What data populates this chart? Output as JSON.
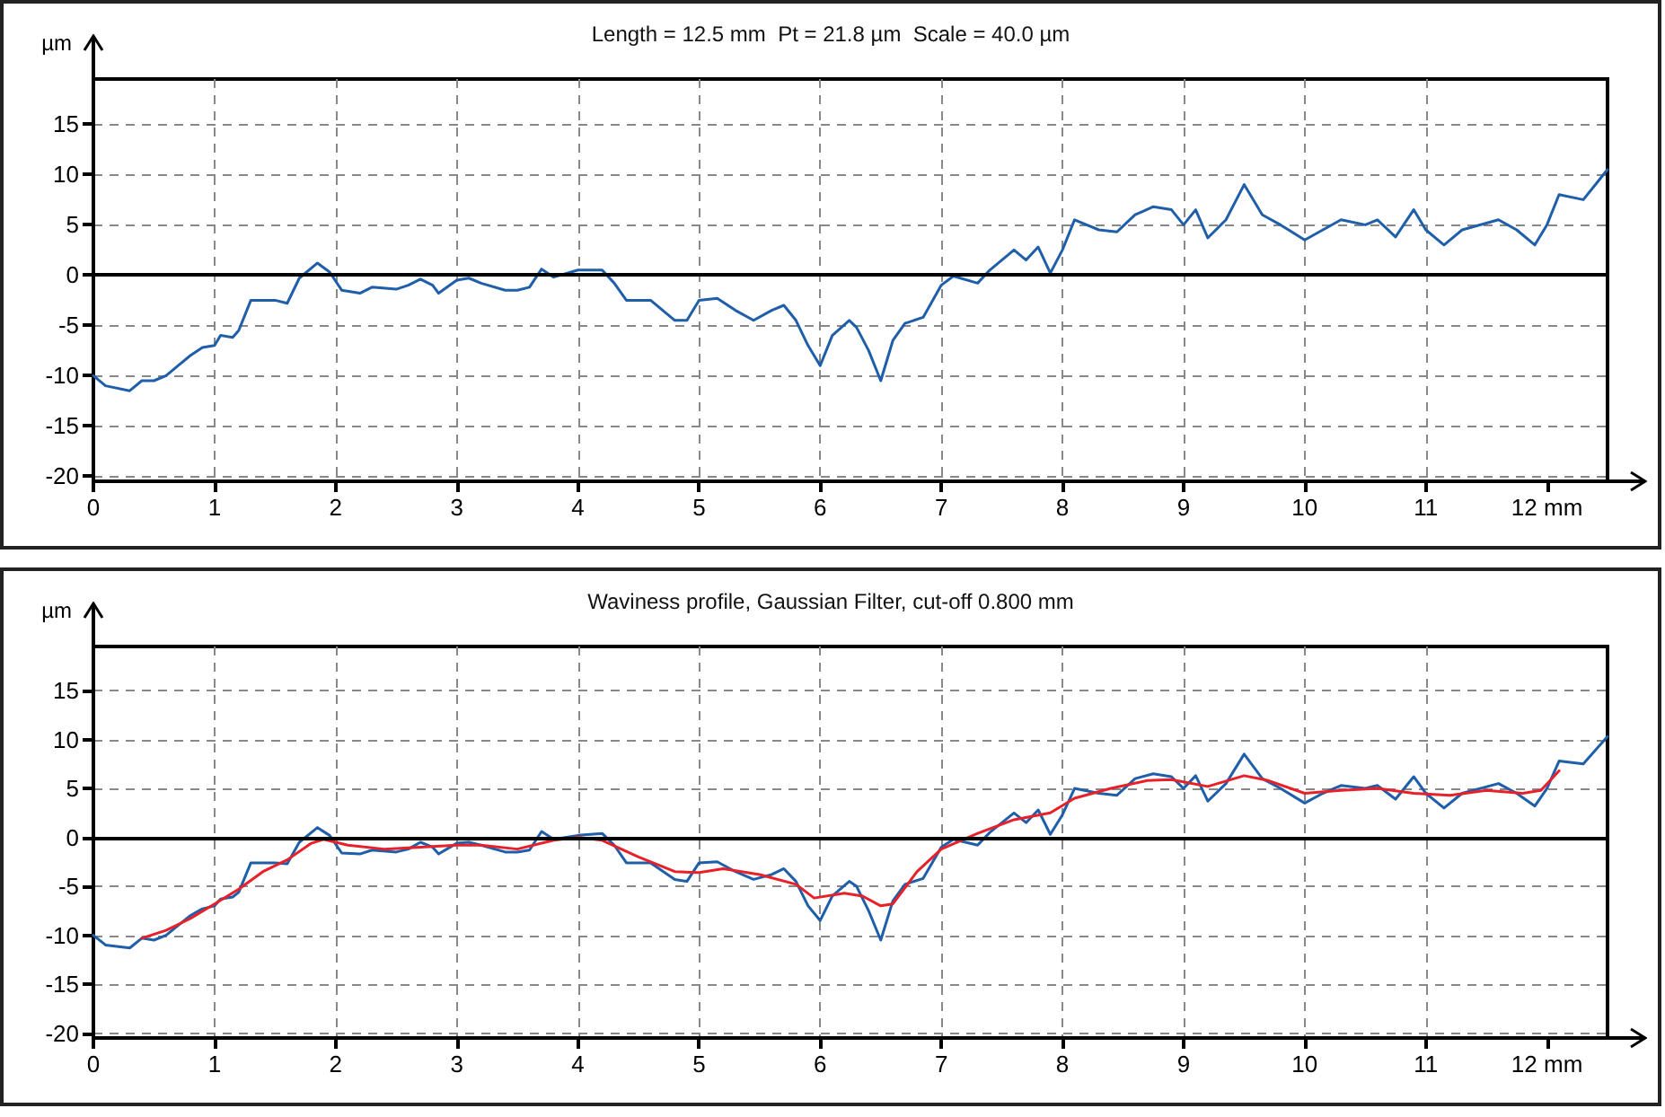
{
  "chart_data": [
    {
      "type": "line",
      "title": "Length = 12.5 mm  Pt = 21.8 µm  Scale = 40.0 µm",
      "ylabel": "µm",
      "xlim": [
        0,
        12.5
      ],
      "ylim": [
        -20.5,
        19.5
      ],
      "xticks": [
        0,
        1,
        2,
        3,
        4,
        5,
        6,
        7,
        8,
        9,
        10,
        11,
        {
          "value": 12,
          "label": "12 mm"
        }
      ],
      "yticks": [
        -20,
        -15,
        -10,
        -5,
        0,
        5,
        10,
        15
      ],
      "grid": true,
      "marker": "none",
      "line_style": "solid",
      "ref_lines": [
        {
          "axis": "y",
          "value": 0,
          "color": "#000000",
          "line_style": "solid"
        }
      ],
      "series": [
        {
          "color": "#1f5faa",
          "x": [
            0,
            0.1,
            0.3,
            0.4,
            0.5,
            0.6,
            0.7,
            0.8,
            0.9,
            1.0,
            1.05,
            1.15,
            1.2,
            1.3,
            1.5,
            1.6,
            1.7,
            1.85,
            1.95,
            2.05,
            2.2,
            2.3,
            2.5,
            2.6,
            2.7,
            2.8,
            2.85,
            3.0,
            3.1,
            3.2,
            3.4,
            3.5,
            3.6,
            3.7,
            3.8,
            4.0,
            4.2,
            4.3,
            4.4,
            4.6,
            4.8,
            4.9,
            5.0,
            5.15,
            5.3,
            5.45,
            5.6,
            5.7,
            5.8,
            5.9,
            6.0,
            6.1,
            6.24,
            6.3,
            6.4,
            6.5,
            6.6,
            6.7,
            6.85,
            7.0,
            7.1,
            7.3,
            7.4,
            7.6,
            7.7,
            7.8,
            7.9,
            8.0,
            8.1,
            8.3,
            8.45,
            8.6,
            8.75,
            8.9,
            9.0,
            9.1,
            9.2,
            9.35,
            9.5,
            9.65,
            9.8,
            10.0,
            10.15,
            10.3,
            10.5,
            10.6,
            10.75,
            10.9,
            11.0,
            11.15,
            11.3,
            11.6,
            11.75,
            11.9,
            12.0,
            12.1,
            12.3,
            12.5
          ],
          "values": [
            -10,
            -11,
            -11.5,
            -10.5,
            -10.5,
            -10,
            -9,
            -8,
            -7.2,
            -7,
            -6,
            -6.2,
            -5.5,
            -2.5,
            -2.5,
            -2.8,
            -0.3,
            1.2,
            0.3,
            -1.5,
            -1.8,
            -1.2,
            -1.4,
            -1,
            -0.4,
            -1,
            -1.8,
            -0.5,
            -0.3,
            -0.8,
            -1.5,
            -1.5,
            -1.2,
            0.6,
            -0.2,
            0.5,
            0.5,
            -0.8,
            -2.5,
            -2.5,
            -4.5,
            -4.5,
            -2.5,
            -2.3,
            -3.5,
            -4.5,
            -3.5,
            -3,
            -4.5,
            -7,
            -9,
            -6,
            -4.5,
            -5.2,
            -7.5,
            -10.5,
            -6.5,
            -4.8,
            -4.2,
            -1,
            -0.1,
            -0.8,
            0.5,
            2.5,
            1.5,
            2.8,
            0.2,
            2.5,
            5.5,
            4.5,
            4.3,
            6,
            6.8,
            6.5,
            5,
            6.5,
            3.7,
            5.5,
            9,
            6,
            5,
            3.5,
            4.5,
            5.5,
            5,
            5.5,
            3.8,
            6.5,
            4.5,
            3,
            4.5,
            5.5,
            4.5,
            3,
            5,
            8,
            7.5,
            10.5
          ]
        }
      ]
    },
    {
      "type": "line",
      "title": "Waviness profile, Gaussian Filter, cut-off 0.800 mm",
      "ylabel": "µm",
      "xlim": [
        0,
        12.5
      ],
      "ylim": [
        -20.5,
        19.5
      ],
      "xticks": [
        0,
        1,
        2,
        3,
        4,
        5,
        6,
        7,
        8,
        9,
        10,
        11,
        {
          "value": 12,
          "label": "12 mm"
        }
      ],
      "yticks": [
        -20,
        -15,
        -10,
        -5,
        0,
        5,
        10,
        15
      ],
      "grid": true,
      "marker": "none",
      "line_style": "solid",
      "ref_lines": [
        {
          "axis": "y",
          "value": 0,
          "color": "#000000",
          "line_style": "solid"
        }
      ],
      "series": [
        {
          "color": "#1f5faa",
          "x": [
            0,
            0.1,
            0.3,
            0.4,
            0.5,
            0.6,
            0.7,
            0.8,
            0.9,
            1.0,
            1.05,
            1.15,
            1.2,
            1.3,
            1.5,
            1.6,
            1.7,
            1.85,
            1.95,
            2.05,
            2.2,
            2.3,
            2.5,
            2.6,
            2.7,
            2.8,
            2.85,
            3.0,
            3.1,
            3.2,
            3.4,
            3.5,
            3.6,
            3.7,
            3.8,
            4.0,
            4.2,
            4.3,
            4.4,
            4.6,
            4.8,
            4.9,
            5.0,
            5.15,
            5.3,
            5.45,
            5.6,
            5.7,
            5.8,
            5.9,
            6.0,
            6.1,
            6.24,
            6.3,
            6.4,
            6.5,
            6.6,
            6.7,
            6.85,
            7.0,
            7.1,
            7.3,
            7.4,
            7.6,
            7.7,
            7.8,
            7.9,
            8.0,
            8.1,
            8.3,
            8.45,
            8.6,
            8.75,
            8.9,
            9.0,
            9.1,
            9.2,
            9.35,
            9.5,
            9.65,
            9.8,
            10.0,
            10.15,
            10.3,
            10.5,
            10.6,
            10.75,
            10.9,
            11.0,
            11.15,
            11.3,
            11.6,
            11.75,
            11.9,
            12.0,
            12.1,
            12.3,
            12.5
          ],
          "values": [
            -10,
            -11,
            -11.3,
            -10.3,
            -10.5,
            -10,
            -9,
            -8,
            -7.3,
            -7,
            -6.3,
            -6.1,
            -5.6,
            -2.6,
            -2.6,
            -2.7,
            -0.5,
            1,
            0.2,
            -1.6,
            -1.7,
            -1.3,
            -1.5,
            -1.2,
            -0.5,
            -1,
            -1.7,
            -0.6,
            -0.5,
            -0.8,
            -1.5,
            -1.5,
            -1.3,
            0.6,
            -0.2,
            0.2,
            0.4,
            -0.8,
            -2.6,
            -2.6,
            -4.3,
            -4.5,
            -2.6,
            -2.5,
            -3.5,
            -4.3,
            -3.8,
            -3.2,
            -4.5,
            -7,
            -8.5,
            -6,
            -4.5,
            -5,
            -7.5,
            -10.5,
            -6.5,
            -4.8,
            -4.2,
            -1,
            -0.2,
            -0.8,
            0.5,
            2.5,
            1.5,
            2.8,
            0.3,
            2.3,
            5,
            4.5,
            4.3,
            6,
            6.5,
            6.2,
            5,
            6.3,
            3.7,
            5.5,
            8.5,
            6,
            5,
            3.5,
            4.5,
            5.3,
            5,
            5.3,
            3.9,
            6.2,
            4.5,
            3,
            4.5,
            5.5,
            4.5,
            3.2,
            5,
            7.8,
            7.5,
            10.3
          ]
        },
        {
          "color": "#e8202a",
          "x": [
            0.4,
            0.6,
            0.8,
            1.0,
            1.2,
            1.4,
            1.6,
            1.8,
            1.9,
            2.1,
            2.4,
            2.7,
            3.0,
            3.2,
            3.5,
            3.8,
            4.0,
            4.2,
            4.5,
            4.8,
            5.0,
            5.2,
            5.5,
            5.8,
            5.95,
            6.2,
            6.35,
            6.5,
            6.6,
            6.8,
            7.0,
            7.3,
            7.6,
            7.9,
            8.1,
            8.4,
            8.7,
            8.9,
            9.2,
            9.5,
            9.7,
            10.0,
            10.3,
            10.6,
            10.9,
            11.2,
            11.5,
            11.8,
            11.95,
            12.1
          ],
          "values": [
            -10.3,
            -9.5,
            -8.3,
            -6.8,
            -5.3,
            -3.5,
            -2.3,
            -0.6,
            -0.2,
            -0.8,
            -1.2,
            -1,
            -0.8,
            -0.8,
            -1.2,
            -0.3,
            0,
            -0.3,
            -2,
            -3.5,
            -3.6,
            -3.2,
            -3.8,
            -4.8,
            -6.2,
            -5.7,
            -6,
            -7,
            -6.8,
            -3.5,
            -1.2,
            0.4,
            1.8,
            2.5,
            4,
            5,
            5.8,
            5.9,
            5.2,
            6.3,
            5.8,
            4.5,
            4.8,
            5,
            4.5,
            4.3,
            4.8,
            4.5,
            4.8,
            6.8
          ]
        }
      ]
    }
  ]
}
